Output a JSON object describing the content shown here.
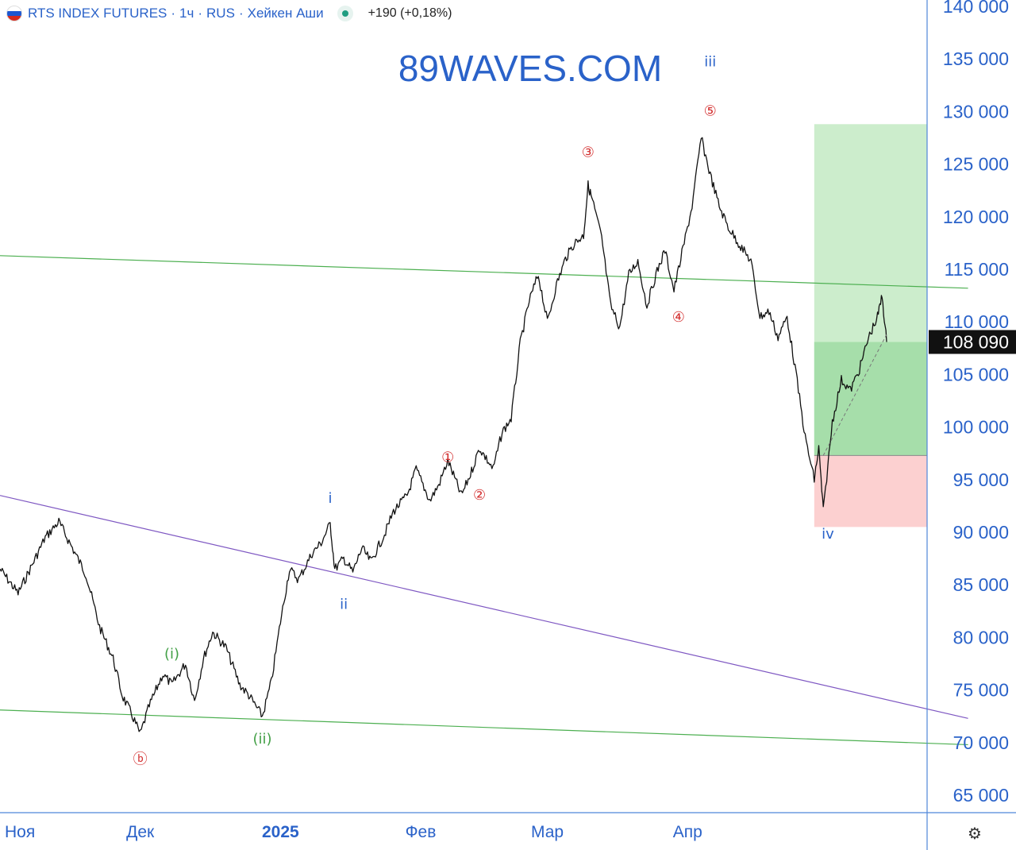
{
  "header": {
    "symbol": "RTS INDEX FUTURES",
    "interval": "1ч",
    "exchange": "RUS",
    "chart_style": "Хейкен Аши",
    "change": "+190 (+0,18%)",
    "flag": "russia-flag",
    "status_color": "#1e9d80"
  },
  "watermark": "89WAVES.COM",
  "price_scale": {
    "current_price_label": "108 090"
  },
  "settings_icon": "settings-gear-icon",
  "colors": {
    "accent": "#2a62c9",
    "axis_line": "#4f86d9",
    "candles": "#111111",
    "trendline_green": "#4caf50",
    "trendline_purple": "#7e57c2",
    "wave_red": "#d32f2f",
    "wave_blue": "#2a62c9",
    "wave_green": "#43a047",
    "profit_zone": "#c9ecc9",
    "profit_zone_filled": "#a6deaa",
    "loss_zone": "#fcd0d0",
    "price_tag_bg": "#111111"
  },
  "chart_data": {
    "type": "line",
    "style": "heikin-ashi",
    "title": "",
    "xlabel": "",
    "ylabel": "",
    "ylim": [
      62000,
      141500
    ],
    "yticks": [
      65000,
      70000,
      75000,
      80000,
      85000,
      90000,
      95000,
      100000,
      105000,
      110000,
      115000,
      120000,
      125000,
      130000,
      135000,
      140000
    ],
    "ytick_labels": [
      "65 000",
      "70 000",
      "75 000",
      "80 000",
      "85 000",
      "90 000",
      "95 000",
      "100 000",
      "105 000",
      "110 000",
      "115 000",
      "120 000",
      "125 000",
      "130 000",
      "135 000",
      "140 000"
    ],
    "xlim": [
      "2024-10-31",
      "2025-05-15"
    ],
    "xticks": [
      {
        "date": "2024-11-01",
        "label": "Ноя",
        "bold": false
      },
      {
        "date": "2024-12-01",
        "label": "Дек",
        "bold": false
      },
      {
        "date": "2025-01-01",
        "label": "2025",
        "bold": true
      },
      {
        "date": "2025-02-01",
        "label": "Фев",
        "bold": false
      },
      {
        "date": "2025-03-01",
        "label": "Мар",
        "bold": false
      },
      {
        "date": "2025-04-01",
        "label": "Апр",
        "bold": false
      }
    ],
    "grid": false,
    "last_price": 108090,
    "series": [
      {
        "points": [
          [
            "2024-10-31",
            86500
          ],
          [
            "2024-11-04",
            84200
          ],
          [
            "2024-11-07",
            86800
          ],
          [
            "2024-11-10",
            89500
          ],
          [
            "2024-11-13",
            91000
          ],
          [
            "2024-11-16",
            88500
          ],
          [
            "2024-11-19",
            86000
          ],
          [
            "2024-11-22",
            81000
          ],
          [
            "2024-11-25",
            78000
          ],
          [
            "2024-11-27",
            74500
          ],
          [
            "2024-11-29",
            72800
          ],
          [
            "2024-12-01",
            70800
          ],
          [
            "2024-12-03",
            73500
          ],
          [
            "2024-12-06",
            76500
          ],
          [
            "2024-12-08",
            75500
          ],
          [
            "2024-12-11",
            77500
          ],
          [
            "2024-12-13",
            74000
          ],
          [
            "2024-12-15",
            78000
          ],
          [
            "2024-12-17",
            80500
          ],
          [
            "2024-12-20",
            79000
          ],
          [
            "2024-12-23",
            75500
          ],
          [
            "2024-12-25",
            74500
          ],
          [
            "2024-12-28",
            72500
          ],
          [
            "2024-12-30",
            75800
          ],
          [
            "2025-01-01",
            81500
          ],
          [
            "2025-01-03",
            86500
          ],
          [
            "2025-01-05",
            85500
          ],
          [
            "2025-01-08",
            88000
          ],
          [
            "2025-01-10",
            89000
          ],
          [
            "2025-01-12",
            90800
          ],
          [
            "2025-01-13",
            86500
          ],
          [
            "2025-01-15",
            87500
          ],
          [
            "2025-01-17",
            86200
          ],
          [
            "2025-01-19",
            88500
          ],
          [
            "2025-01-21",
            87200
          ],
          [
            "2025-01-24",
            89800
          ],
          [
            "2025-01-26",
            92000
          ],
          [
            "2025-01-29",
            93500
          ],
          [
            "2025-01-31",
            96000
          ],
          [
            "2025-02-03",
            93000
          ],
          [
            "2025-02-05",
            94500
          ],
          [
            "2025-02-07",
            96800
          ],
          [
            "2025-02-10",
            93500
          ],
          [
            "2025-02-12",
            95500
          ],
          [
            "2025-02-14",
            98000
          ],
          [
            "2025-02-17",
            96000
          ],
          [
            "2025-02-19",
            99500
          ],
          [
            "2025-02-21",
            100800
          ],
          [
            "2025-02-23",
            108000
          ],
          [
            "2025-02-25",
            112000
          ],
          [
            "2025-02-27",
            114500
          ],
          [
            "2025-03-01",
            110000
          ],
          [
            "2025-03-03",
            113500
          ],
          [
            "2025-03-05",
            116000
          ],
          [
            "2025-03-07",
            117500
          ],
          [
            "2025-03-09",
            118200
          ],
          [
            "2025-03-10",
            123000
          ],
          [
            "2025-03-11",
            121500
          ],
          [
            "2025-03-13",
            118000
          ],
          [
            "2025-03-15",
            111500
          ],
          [
            "2025-03-17",
            109500
          ],
          [
            "2025-03-19",
            114500
          ],
          [
            "2025-03-21",
            115800
          ],
          [
            "2025-03-23",
            111500
          ],
          [
            "2025-03-25",
            114500
          ],
          [
            "2025-03-27",
            116800
          ],
          [
            "2025-03-29",
            113000
          ],
          [
            "2025-03-31",
            117000
          ],
          [
            "2025-04-02",
            121000
          ],
          [
            "2025-04-04",
            127500
          ],
          [
            "2025-04-06",
            124000
          ],
          [
            "2025-04-08",
            121000
          ],
          [
            "2025-04-10",
            119000
          ],
          [
            "2025-04-13",
            117000
          ],
          [
            "2025-04-15",
            115800
          ],
          [
            "2025-04-17",
            110500
          ],
          [
            "2025-04-19",
            111000
          ],
          [
            "2025-04-21",
            108500
          ],
          [
            "2025-04-23",
            110500
          ],
          [
            "2025-04-25",
            105000
          ],
          [
            "2025-04-27",
            99000
          ],
          [
            "2025-04-29",
            95000
          ],
          [
            "2025-04-30",
            98000
          ],
          [
            "2025-05-01",
            92000
          ],
          [
            "2025-05-03",
            100500
          ],
          [
            "2025-05-05",
            104500
          ],
          [
            "2025-05-07",
            103500
          ],
          [
            "2025-05-09",
            105500
          ],
          [
            "2025-05-11",
            108500
          ],
          [
            "2025-05-13",
            110500
          ],
          [
            "2025-05-14",
            112500
          ],
          [
            "2025-05-15",
            108090
          ]
        ]
      }
    ],
    "trendlines": [
      {
        "kind": "green",
        "from": [
          "2024-10-31",
          116300
        ],
        "to": [
          "2025-06-02",
          113200
        ]
      },
      {
        "kind": "green",
        "from": [
          "2024-10-31",
          73100
        ],
        "to": [
          "2025-06-02",
          69800
        ]
      },
      {
        "kind": "purple",
        "from": [
          "2024-10-31",
          93500
        ],
        "to": [
          "2025-06-02",
          72300
        ]
      }
    ],
    "position_tool": {
      "start_date": "2025-04-29",
      "entry": 97300,
      "take_profit": 128800,
      "stop_loss": 90500,
      "fill_start_date": "2025-04-29",
      "current": 108090
    },
    "annotations": [
      {
        "text": "iii",
        "date": "2025-04-06",
        "price": 134300,
        "color": "blue"
      },
      {
        "text": "⑤",
        "date": "2025-04-06",
        "price": 129600,
        "color": "red"
      },
      {
        "text": "③",
        "date": "2025-03-10",
        "price": 125700,
        "color": "red"
      },
      {
        "text": "④",
        "date": "2025-03-30",
        "price": 110000,
        "color": "red"
      },
      {
        "text": "①",
        "date": "2025-02-07",
        "price": 96700,
        "color": "red"
      },
      {
        "text": "②",
        "date": "2025-02-14",
        "price": 93100,
        "color": "red"
      },
      {
        "text": "i",
        "date": "2025-01-12",
        "price": 92800,
        "color": "blue"
      },
      {
        "text": "ii",
        "date": "2025-01-15",
        "price": 82700,
        "color": "blue"
      },
      {
        "text": "iv",
        "date": "2025-05-02",
        "price": 89400,
        "color": "blue"
      },
      {
        "text": "(i)",
        "date": "2024-12-08",
        "price": 78000,
        "color": "green"
      },
      {
        "text": "(ii)",
        "date": "2024-12-28",
        "price": 69900,
        "color": "green"
      },
      {
        "text": "ⓑ",
        "date": "2024-12-01",
        "price": 68000,
        "color": "red"
      }
    ]
  }
}
